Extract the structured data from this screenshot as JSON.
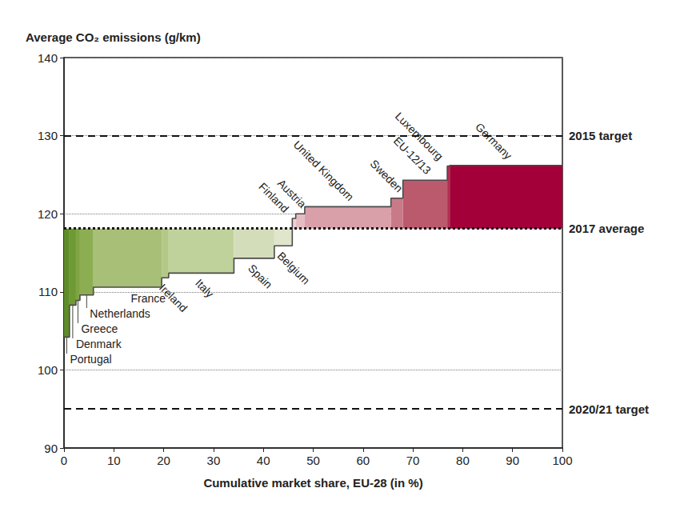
{
  "chart_data": {
    "type": "variwide",
    "x_label": "Cumulative market share, EU-28 (in %)",
    "y_label": "Average CO₂ emissions (g/km)",
    "categories": [
      "Portugal",
      "Denmark",
      "Greece",
      "Netherlands",
      "France",
      "Ireland",
      "Italy",
      "Spain",
      "Belgium",
      "Finland",
      "Austria",
      "United Kingdom",
      "Sweden",
      "EU-12/13",
      "Luxembourg",
      "Germany"
    ],
    "market_share": [
      1.1,
      1.3,
      0.8,
      2.7,
      13.7,
      1.4,
      13.1,
      8.1,
      3.6,
      0.7,
      1.8,
      17.3,
      2.4,
      8.9,
      0.5,
      22.6
    ],
    "values": [
      104.2,
      108.3,
      108.9,
      109.6,
      110.6,
      111.8,
      112.4,
      114.3,
      115.9,
      119.4,
      120.0,
      120.9,
      122.0,
      124.3,
      126.1,
      126.2
    ],
    "colors": [
      "#5f8c2a",
      "#6e9a35",
      "#7ea443",
      "#8cad52",
      "#a7bf76",
      "#b3c887",
      "#c0d29b",
      "#d3ddb9",
      "#e0e6cc",
      "#eccfd2",
      "#e5bcc2",
      "#d9a0aa",
      "#c97a89",
      "#bc5a6d",
      "#b03050",
      "#a3003a"
    ],
    "baseline": {
      "label": "2017 average",
      "value": 118.1
    },
    "reference_lines": [
      {
        "label": "2015 target",
        "value": 130
      },
      {
        "label": "2020/21 target",
        "value": 95
      }
    ],
    "xlim": [
      0,
      100
    ],
    "xticks": [
      0,
      10,
      20,
      30,
      40,
      50,
      60,
      70,
      80,
      90,
      100
    ],
    "ylim": [
      90,
      140
    ],
    "yticks": [
      90,
      100,
      110,
      120,
      130,
      140
    ],
    "grid": true
  }
}
